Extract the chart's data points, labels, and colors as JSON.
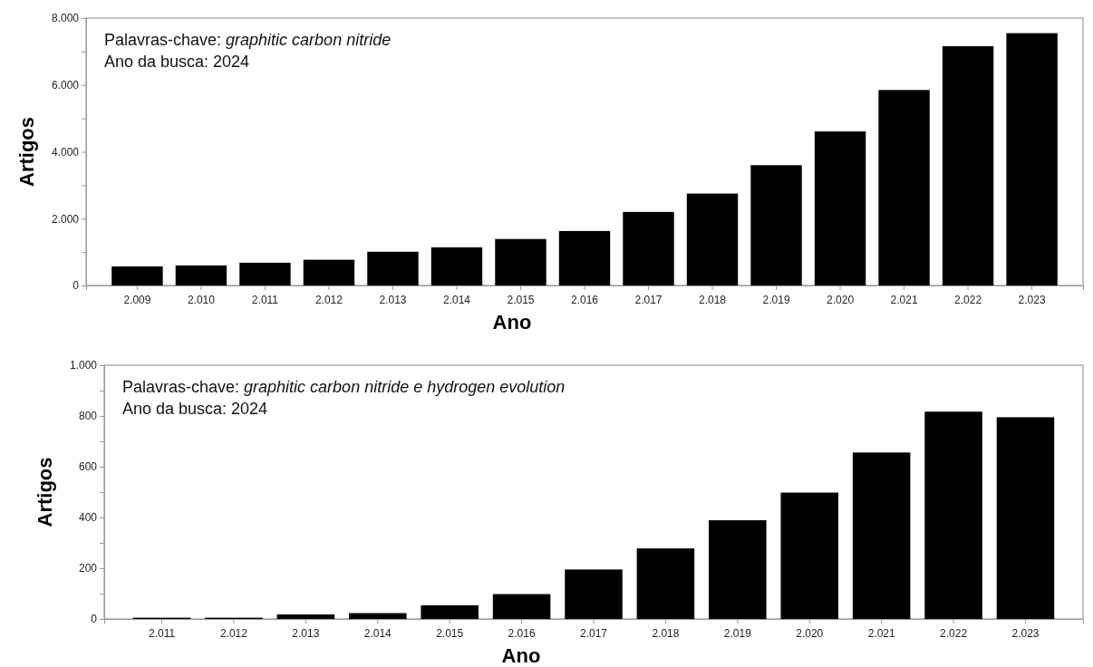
{
  "chart_data": [
    {
      "type": "bar",
      "xlabel": "Ano",
      "ylabel": "Artigos",
      "color": "#000000",
      "categories": [
        "2.009",
        "2.010",
        "2.011",
        "2.012",
        "2.013",
        "2.014",
        "2.015",
        "2.016",
        "2.017",
        "2.018",
        "2.019",
        "2.020",
        "2.021",
        "2.022",
        "2.023"
      ],
      "values": [
        570,
        600,
        680,
        770,
        1010,
        1140,
        1390,
        1630,
        2200,
        2750,
        3600,
        4610,
        5850,
        7160,
        7550
      ],
      "ylim": [
        0,
        8000
      ],
      "yticks": [
        0,
        {
          "value": 1000,
          "label": null
        },
        {
          "value": 2000,
          "label": "2.000"
        },
        {
          "value": 3000,
          "label": null
        },
        {
          "value": 4000,
          "label": "4.000"
        },
        {
          "value": 5000,
          "label": null
        },
        {
          "value": 6000,
          "label": "6.000"
        },
        {
          "value": 7000,
          "label": null
        },
        {
          "value": 8000,
          "label": "8.000"
        }
      ],
      "annotations": [
        "Palavras-chave: graphitic carbon nitride",
        "Ano da busca: 2024"
      ]
    },
    {
      "type": "bar",
      "xlabel": "Ano",
      "ylabel": "Artigos",
      "color": "#000000",
      "categories": [
        "2.011",
        "2.012",
        "2.013",
        "2.014",
        "2.015",
        "2.016",
        "2.017",
        "2.018",
        "2.019",
        "2.020",
        "2.021",
        "2.022",
        "2.023"
      ],
      "values": [
        5,
        5,
        18,
        23,
        54,
        98,
        195,
        278,
        389,
        498,
        656,
        817,
        795
      ],
      "ylim": [
        0,
        1000
      ],
      "yticks": [
        0,
        {
          "value": 100,
          "label": null
        },
        200,
        {
          "value": 300,
          "label": null
        },
        400,
        {
          "value": 500,
          "label": null
        },
        600,
        {
          "value": 700,
          "label": null
        },
        800,
        {
          "value": 900,
          "label": null
        },
        {
          "value": 1000,
          "label": "1.000"
        }
      ],
      "annotations": [
        "Palavras-chave: graphitic carbon nitride e hydrogen evolution",
        "Ano da busca: 2024"
      ]
    }
  ]
}
